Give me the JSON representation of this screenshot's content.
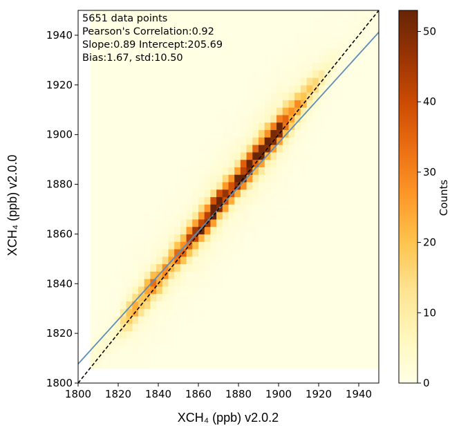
{
  "chart_data": {
    "type": "heatmap",
    "title": "",
    "xlabel": "XCH₄ (ppb) v2.0.2",
    "ylabel": "XCH₄ (ppb) v2.0.0",
    "xlim": [
      1800,
      1950
    ],
    "ylim": [
      1800,
      1950
    ],
    "x_ticks": [
      "1800",
      "1820",
      "1840",
      "1860",
      "1880",
      "1900",
      "1920",
      "1940"
    ],
    "y_ticks": [
      "1800",
      "1820",
      "1840",
      "1860",
      "1880",
      "1900",
      "1920",
      "1940"
    ],
    "bin_width": 3,
    "n_points": 5651,
    "pearson_correlation": 0.92,
    "slope": 0.89,
    "intercept": 205.69,
    "bias": 1.67,
    "std": 10.5,
    "annotations": [
      "5651 data points",
      "Pearson's Correlation:0.92",
      "Slope:0.89 Intercept:205.69",
      "Bias:1.67, std:10.50"
    ],
    "density_ridge": [
      {
        "x": 1818,
        "peak": 3
      },
      {
        "x": 1826,
        "peak": 18
      },
      {
        "x": 1834,
        "peak": 24
      },
      {
        "x": 1842,
        "peak": 26
      },
      {
        "x": 1850,
        "peak": 30
      },
      {
        "x": 1858,
        "peak": 36
      },
      {
        "x": 1864,
        "peak": 48
      },
      {
        "x": 1870,
        "peak": 46
      },
      {
        "x": 1878,
        "peak": 42
      },
      {
        "x": 1886,
        "peak": 45
      },
      {
        "x": 1894,
        "peak": 50
      },
      {
        "x": 1902,
        "peak": 42
      },
      {
        "x": 1910,
        "peak": 24
      },
      {
        "x": 1918,
        "peak": 12
      },
      {
        "x": 1926,
        "peak": 4
      },
      {
        "x": 1932,
        "peak": 1
      }
    ],
    "lines": [
      {
        "name": "regression",
        "slope": 0.89,
        "intercept": 205.69,
        "style": "solid",
        "color": "#5b8db8"
      },
      {
        "name": "one-to-one",
        "slope": 1,
        "intercept": 0,
        "style": "dashed",
        "color": "#000000"
      }
    ],
    "colorbar": {
      "label": "Counts",
      "range": [
        0,
        53
      ],
      "ticks": [
        "0",
        "10",
        "20",
        "30",
        "40",
        "50"
      ],
      "colormap": "YlOrBr"
    },
    "grid": false
  }
}
